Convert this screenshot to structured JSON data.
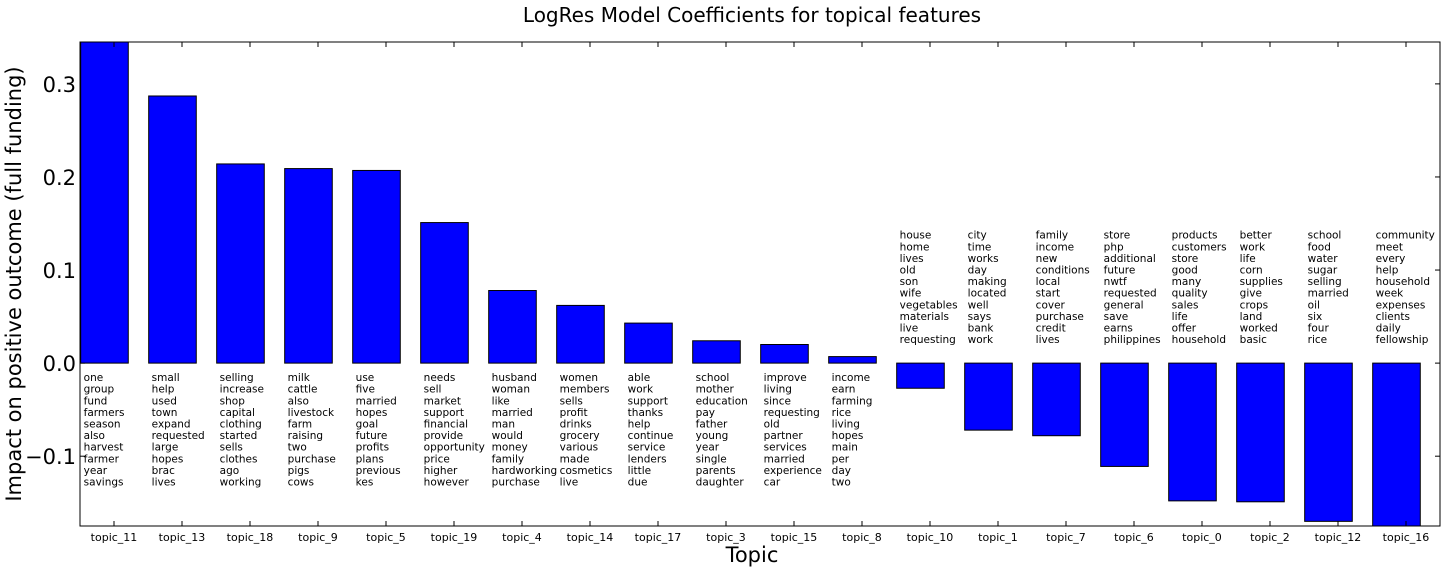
{
  "chart_data": {
    "type": "bar",
    "title": "LogRes Model Coefficients for topical features",
    "xlabel": "Topic",
    "ylabel": "Impact on positive outcome (full funding)",
    "ylim": [
      -0.175,
      0.345
    ],
    "yticks": [
      -0.1,
      0.0,
      0.1,
      0.2,
      0.3
    ],
    "ytick_labels": [
      "−0.1",
      "0.0",
      "0.1",
      "0.2",
      "0.3"
    ],
    "grid": false,
    "bar_color": "#0000ff",
    "categories": [
      "topic_11",
      "topic_13",
      "topic_18",
      "topic_9",
      "topic_5",
      "topic_19",
      "topic_4",
      "topic_14",
      "topic_17",
      "topic_3",
      "topic_15",
      "topic_8",
      "topic_10",
      "topic_1",
      "topic_7",
      "topic_6",
      "topic_0",
      "topic_2",
      "topic_12",
      "topic_16"
    ],
    "values": [
      0.345,
      0.287,
      0.214,
      0.209,
      0.207,
      0.151,
      0.078,
      0.062,
      0.043,
      0.024,
      0.02,
      0.007,
      -0.027,
      -0.072,
      -0.078,
      -0.111,
      -0.148,
      -0.149,
      -0.17,
      -0.175
    ],
    "annotations": [
      [
        "one",
        "group",
        "fund",
        "farmers",
        "season",
        "also",
        "harvest",
        "farmer",
        "year",
        "savings"
      ],
      [
        "small",
        "help",
        "used",
        "town",
        "expand",
        "requested",
        "large",
        "hopes",
        "brac",
        "lives"
      ],
      [
        "selling",
        "increase",
        "shop",
        "capital",
        "clothing",
        "started",
        "sells",
        "clothes",
        "ago",
        "working"
      ],
      [
        "milk",
        "cattle",
        "also",
        "livestock",
        "farm",
        "raising",
        "two",
        "purchase",
        "pigs",
        "cows"
      ],
      [
        "use",
        "five",
        "married",
        "hopes",
        "goal",
        "future",
        "profits",
        "plans",
        "previous",
        "kes"
      ],
      [
        "needs",
        "sell",
        "market",
        "support",
        "financial",
        "provide",
        "opportunity",
        "price",
        "higher",
        "however"
      ],
      [
        "husband",
        "woman",
        "like",
        "married",
        "man",
        "would",
        "money",
        "family",
        "hardworking",
        "purchase"
      ],
      [
        "women",
        "members",
        "sells",
        "profit",
        "drinks",
        "grocery",
        "various",
        "made",
        "cosmetics",
        "live"
      ],
      [
        "able",
        "work",
        "support",
        "thanks",
        "help",
        "continue",
        "service",
        "lenders",
        "little",
        "due"
      ],
      [
        "school",
        "mother",
        "education",
        "pay",
        "father",
        "young",
        "year",
        "single",
        "parents",
        "daughter"
      ],
      [
        "improve",
        "living",
        "since",
        "requesting",
        "old",
        "partner",
        "services",
        "married",
        "experience",
        "car"
      ],
      [
        "income",
        "earn",
        "farming",
        "rice",
        "living",
        "hopes",
        "main",
        "per",
        "day",
        "two"
      ],
      [
        "house",
        "home",
        "lives",
        "old",
        "son",
        "wife",
        "vegetables",
        "materials",
        "live",
        "requesting"
      ],
      [
        "city",
        "time",
        "works",
        "day",
        "making",
        "located",
        "well",
        "says",
        "bank",
        "work"
      ],
      [
        "family",
        "income",
        "new",
        "conditions",
        "local",
        "start",
        "cover",
        "purchase",
        "credit",
        "lives"
      ],
      [
        "store",
        "php",
        "additional",
        "future",
        "nwtf",
        "requested",
        "general",
        "save",
        "earns",
        "philippines"
      ],
      [
        "products",
        "customers",
        "store",
        "good",
        "many",
        "quality",
        "sales",
        "life",
        "offer",
        "household"
      ],
      [
        "better",
        "work",
        "life",
        "corn",
        "supplies",
        "give",
        "crops",
        "land",
        "worked",
        "basic"
      ],
      [
        "school",
        "food",
        "water",
        "sugar",
        "selling",
        "married",
        "oil",
        "six",
        "four",
        "rice"
      ],
      [
        "community",
        "meet",
        "every",
        "help",
        "household",
        "week",
        "expenses",
        "clients",
        "daily",
        "fellowship"
      ]
    ]
  }
}
